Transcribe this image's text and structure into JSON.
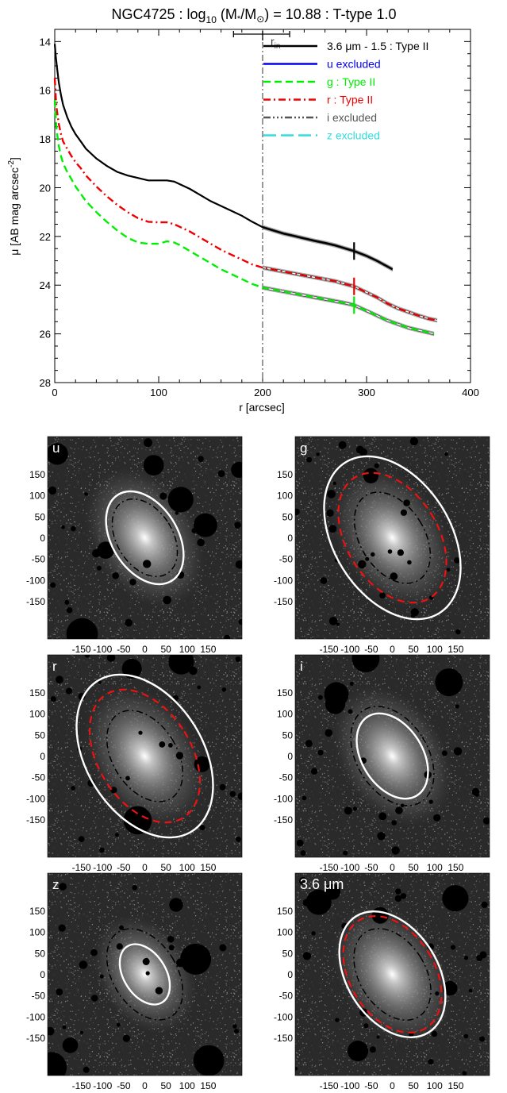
{
  "colors": {
    "black": "#000000",
    "blue": "#0000ee",
    "green": "#00ee00",
    "red": "#ee0000",
    "gray": "#555555",
    "cyan": "#33dddd",
    "ellipse_white": "#ffffff",
    "ellipse_red": "#ee1111",
    "shade": "#b0b0b0"
  },
  "chart_data": [
    {
      "type": "line",
      "title_parts": {
        "prefix": "NGC4725 : log",
        "sub": "10",
        "mid": " (M",
        "star": "*",
        "slash": "/M",
        "sun": "⊙",
        "suffix": ") = 10.88 : T-type 1.0"
      },
      "xlabel": "r [arcsec]",
      "ylabel_main": "μ [AB mag arcsec",
      "ylabel_sup": "-2",
      "ylabel_end": "]",
      "xlim": [
        0,
        400
      ],
      "ylim": [
        28,
        13.5
      ],
      "y_reversed": true,
      "xticks": [
        0,
        100,
        200,
        300,
        400
      ],
      "yticks": [
        14,
        16,
        18,
        20,
        22,
        24,
        26,
        28
      ],
      "vertical_line_x": 200,
      "break_radius": 288,
      "r_in_label": "r",
      "r_in_sub": "in",
      "r_in_value": 200,
      "r_in_err": [
        172,
        226
      ],
      "legend": [
        {
          "label": "3.6 μm - 1.5 : Type II",
          "color": "#000000",
          "dash": "",
          "width": 2.6
        },
        {
          "label": "u excluded",
          "color": "#0000ee",
          "dash": "",
          "width": 2.6
        },
        {
          "label": "g : Type II",
          "color": "#00ee00",
          "dash": "9,5",
          "width": 2.6
        },
        {
          "label": "r : Type II",
          "color": "#ee0000",
          "dash": "9,4,2,4",
          "width": 2.6
        },
        {
          "label": "i excluded",
          "color": "#555555",
          "dash": "9,3,2,3,2,3,2,3",
          "width": 2.6
        },
        {
          "label": "z excluded",
          "color": "#33dddd",
          "dash": "16,6",
          "width": 2.6
        }
      ],
      "series": [
        {
          "name": "3.6 μm - 1.5 : Type II",
          "color": "#000000",
          "dash": "",
          "width": 2.2,
          "x": [
            0,
            1,
            2,
            4,
            6,
            8,
            12,
            16,
            20,
            25,
            30,
            40,
            50,
            60,
            70,
            80,
            90,
            100,
            108,
            115,
            120,
            130,
            140,
            150,
            160,
            170,
            180,
            190,
            200,
            210,
            220,
            230,
            240,
            250,
            260,
            270,
            280,
            288,
            300,
            310,
            325
          ],
          "y": [
            14.1,
            14.6,
            15.0,
            15.7,
            16.2,
            16.6,
            17.1,
            17.5,
            17.8,
            18.1,
            18.4,
            18.8,
            19.1,
            19.35,
            19.5,
            19.6,
            19.7,
            19.7,
            19.7,
            19.75,
            19.85,
            20.05,
            20.3,
            20.55,
            20.75,
            20.95,
            21.15,
            21.4,
            21.62,
            21.75,
            21.88,
            21.98,
            22.08,
            22.18,
            22.27,
            22.37,
            22.5,
            22.6,
            22.8,
            23.0,
            23.35
          ]
        },
        {
          "name": "r : Type II",
          "color": "#ee0000",
          "dash": "9,4,2,4",
          "width": 2.4,
          "x": [
            0,
            1,
            2,
            4,
            6,
            8,
            12,
            16,
            20,
            25,
            30,
            40,
            50,
            60,
            70,
            80,
            90,
            100,
            108,
            115,
            120,
            130,
            140,
            150,
            160,
            170,
            180,
            190,
            200,
            210,
            220,
            230,
            240,
            250,
            260,
            270,
            280,
            288,
            300,
            310,
            320,
            330,
            340,
            350,
            360,
            368
          ],
          "y": [
            15.5,
            16.3,
            16.8,
            17.4,
            17.8,
            18.1,
            18.4,
            18.7,
            18.95,
            19.2,
            19.5,
            19.95,
            20.35,
            20.7,
            21.0,
            21.25,
            21.4,
            21.42,
            21.42,
            21.5,
            21.6,
            21.8,
            22.05,
            22.3,
            22.55,
            22.75,
            22.95,
            23.15,
            23.28,
            23.36,
            23.44,
            23.52,
            23.6,
            23.68,
            23.76,
            23.84,
            23.96,
            24.05,
            24.3,
            24.5,
            24.75,
            24.95,
            25.1,
            25.25,
            25.38,
            25.45
          ]
        },
        {
          "name": "g : Type II",
          "color": "#00ee00",
          "dash": "9,5",
          "width": 2.4,
          "x": [
            0,
            1,
            2,
            4,
            6,
            8,
            12,
            16,
            20,
            25,
            30,
            40,
            50,
            60,
            70,
            80,
            90,
            100,
            108,
            115,
            120,
            130,
            140,
            150,
            160,
            170,
            180,
            190,
            200,
            210,
            220,
            230,
            240,
            250,
            260,
            270,
            280,
            288,
            300,
            310,
            320,
            330,
            340,
            350,
            360,
            365
          ],
          "y": [
            16.4,
            17.2,
            17.7,
            18.3,
            18.7,
            19.0,
            19.35,
            19.65,
            19.95,
            20.25,
            20.55,
            21.0,
            21.4,
            21.75,
            22.05,
            22.25,
            22.3,
            22.3,
            22.2,
            22.25,
            22.35,
            22.6,
            22.85,
            23.1,
            23.35,
            23.55,
            23.75,
            23.95,
            24.1,
            24.18,
            24.26,
            24.34,
            24.42,
            24.5,
            24.58,
            24.66,
            24.74,
            24.82,
            25.05,
            25.25,
            25.45,
            25.6,
            25.75,
            25.85,
            25.95,
            26.0
          ]
        }
      ]
    },
    {
      "type": "image-panels",
      "tick_labels_y": [
        "150",
        "100",
        "50",
        "0",
        "-50",
        "-100",
        "-150"
      ],
      "tick_values_y": [
        150,
        100,
        50,
        0,
        -50,
        -100,
        -150
      ],
      "tick_labels_x": [
        "-150",
        "-100",
        "-50",
        "0",
        "50",
        "100",
        "150"
      ],
      "tick_values_x": [
        -150,
        -100,
        -50,
        0,
        50,
        100,
        150
      ],
      "panels": [
        {
          "label": "u",
          "ellipses": [
            {
              "style": "white-solid",
              "a": 120,
              "b": 78
            },
            {
              "style": "black-dashdot",
              "a": 100,
              "b": 66
            }
          ]
        },
        {
          "label": "g",
          "ellipses": [
            {
              "style": "white-solid",
              "a": 210,
              "b": 138
            },
            {
              "style": "red-dashed",
              "a": 168,
              "b": 108
            },
            {
              "style": "black-dashdot",
              "a": 118,
              "b": 76
            }
          ]
        },
        {
          "label": "r",
          "ellipses": [
            {
              "style": "white-solid",
              "a": 210,
              "b": 138
            },
            {
              "style": "red-dashed",
              "a": 172,
              "b": 110
            },
            {
              "style": "black-dashdot",
              "a": 118,
              "b": 76
            }
          ]
        },
        {
          "label": "i",
          "ellipses": [
            {
              "style": "white-solid",
              "a": 110,
              "b": 72
            },
            {
              "style": "black-dashdot",
              "a": 128,
              "b": 84
            }
          ]
        },
        {
          "label": "z",
          "ellipses": [
            {
              "style": "white-solid",
              "a": 78,
              "b": 50
            },
            {
              "style": "black-dashdot",
              "a": 118,
              "b": 76
            }
          ]
        },
        {
          "label": "3.6 μm",
          "ellipses": [
            {
              "style": "white-solid",
              "a": 162,
              "b": 108
            },
            {
              "style": "red-dashed",
              "a": 150,
              "b": 100
            },
            {
              "style": "black-dashdot",
              "a": 118,
              "b": 78
            }
          ]
        }
      ]
    }
  ]
}
